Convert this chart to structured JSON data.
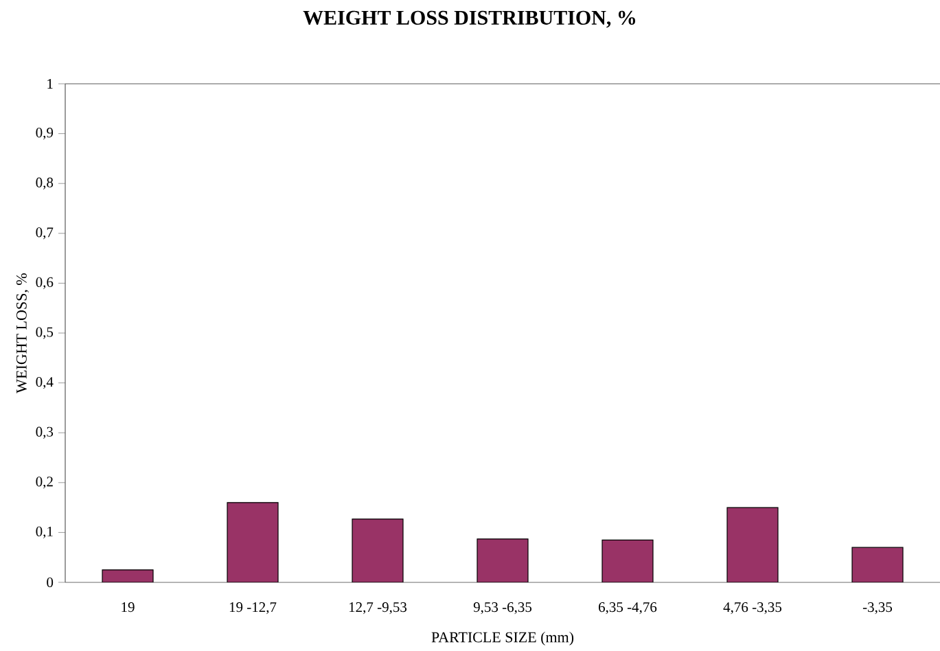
{
  "chart_data": {
    "type": "bar",
    "title": "WEIGHT LOSS DISTRIBUTION, %",
    "xlabel": "PARTICLE SIZE (mm)",
    "ylabel": "WEIGHT LOSS, %",
    "categories": [
      "19",
      "19 -12,7",
      "12,7 -9,53",
      "9,53 -6,35",
      "6,35 -4,76",
      "4,76 -3,35",
      "-3,35"
    ],
    "values": [
      0.025,
      0.16,
      0.127,
      0.087,
      0.085,
      0.15,
      0.07
    ],
    "color": "#993366",
    "ylim": [
      0,
      1
    ],
    "yticks": [
      0,
      {
        "value": 0.1,
        "label": "0,1"
      },
      {
        "value": 0.2,
        "label": "0,2"
      },
      {
        "value": 0.3,
        "label": "0,3"
      },
      {
        "value": 0.4,
        "label": "0,4"
      },
      {
        "value": 0.5,
        "label": "0,5"
      },
      {
        "value": 0.6,
        "label": "0,6"
      },
      {
        "value": 0.7,
        "label": "0,7"
      },
      {
        "value": 0.8,
        "label": "0,8"
      },
      {
        "value": 0.9,
        "label": "0,9"
      },
      1
    ],
    "grid": false
  }
}
